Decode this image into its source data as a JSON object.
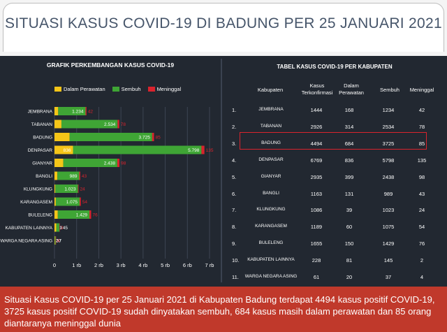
{
  "header": {
    "title": "SITUASI KASUS COVID-19 DI BADUNG PER 25 JANUARI 2021"
  },
  "chart": {
    "title": "GRAFIK PERKEMBANGAN KASUS COVID-19",
    "legend": [
      {
        "label": "Dalam Perawatan",
        "color": "#f5c518"
      },
      {
        "label": "Sembuh",
        "color": "#3fa535"
      },
      {
        "label": "Meninggal",
        "color": "#d9232d"
      }
    ]
  },
  "chart_data": {
    "type": "bar",
    "orientation": "horizontal",
    "stacked": true,
    "title": "GRAFIK PERKEMBANGAN KASUS COVID-19",
    "categories": [
      "JEMBRANA",
      "TABANAN",
      "BADUNG",
      "DENPASAR",
      "GIANYAR",
      "BANGLI",
      "KLUNGKUNG",
      "KARANGASEM",
      "BULELENG",
      "KABUPATEN LAINNYA",
      "WARGA NEGARA ASING"
    ],
    "series": [
      {
        "name": "Dalam Perawatan",
        "color": "#f5c518",
        "values": [
          168,
          314,
          684,
          836,
          399,
          131,
          39,
          60,
          150,
          81,
          20
        ],
        "labels": [
          "168",
          "314",
          "684",
          "836",
          "399",
          "131",
          "39",
          "60",
          "150",
          "81",
          "20"
        ]
      },
      {
        "name": "Sembuh",
        "color": "#3fa535",
        "values": [
          1234,
          2534,
          3725,
          5798,
          2438,
          989,
          1023,
          1075,
          1429,
          145,
          37
        ],
        "labels": [
          "1.234",
          "2.534",
          "3.725",
          "5.798",
          "2.438",
          "989",
          "1.023",
          "1.075",
          "1.429",
          "145",
          "37"
        ]
      },
      {
        "name": "Meninggal",
        "color": "#d9232d",
        "values": [
          42,
          78,
          85,
          135,
          98,
          43,
          24,
          54,
          76,
          2,
          4
        ],
        "labels": [
          "42",
          "78",
          "85",
          "135",
          "98",
          "43",
          "24",
          "54",
          "76",
          "2",
          "4"
        ]
      }
    ],
    "xlim": [
      0,
      7000
    ],
    "xticks": [
      "0",
      "1 rb",
      "2 rb",
      "3 rb",
      "4 rb",
      "5 rb",
      "6 rb",
      "7 rb"
    ],
    "grid": true,
    "legend_position": "top"
  },
  "table": {
    "title": "TABEL KASUS COVID-19 PER KABUPATEN",
    "headers": [
      "Kabupaten",
      "Kasus Terkonfirmasi",
      "Dalam Perawatan",
      "Sembuh",
      "Meninggal"
    ],
    "rows": [
      {
        "no": "1.",
        "kabupaten": "JEMBRANA",
        "kasus": "1444",
        "perawatan": "168",
        "sembuh": "1234",
        "meninggal": "42"
      },
      {
        "no": "2.",
        "kabupaten": "TABANAN",
        "kasus": "2926",
        "perawatan": "314",
        "sembuh": "2534",
        "meninggal": "78"
      },
      {
        "no": "3.",
        "kabupaten": "BADUNG",
        "kasus": "4494",
        "perawatan": "684",
        "sembuh": "3725",
        "meninggal": "85"
      },
      {
        "no": "4.",
        "kabupaten": "DENPASAR",
        "kasus": "6769",
        "perawatan": "836",
        "sembuh": "5798",
        "meninggal": "135"
      },
      {
        "no": "5.",
        "kabupaten": "GIANYAR",
        "kasus": "2935",
        "perawatan": "399",
        "sembuh": "2438",
        "meninggal": "98"
      },
      {
        "no": "6.",
        "kabupaten": "BANGLI",
        "kasus": "1163",
        "perawatan": "131",
        "sembuh": "989",
        "meninggal": "43"
      },
      {
        "no": "7.",
        "kabupaten": "KLUNGKUNG",
        "kasus": "1086",
        "perawatan": "39",
        "sembuh": "1023",
        "meninggal": "24"
      },
      {
        "no": "8.",
        "kabupaten": "KARANGASEM",
        "kasus": "1189",
        "perawatan": "60",
        "sembuh": "1075",
        "meninggal": "54"
      },
      {
        "no": "9.",
        "kabupaten": "BULELENG",
        "kasus": "1655",
        "perawatan": "150",
        "sembuh": "1429",
        "meninggal": "76"
      },
      {
        "no": "10.",
        "kabupaten": "KABUPATEN LAINNYA",
        "kasus": "228",
        "perawatan": "81",
        "sembuh": "145",
        "meninggal": "2"
      },
      {
        "no": "11.",
        "kabupaten": "WARGA NEGARA ASING",
        "kasus": "61",
        "perawatan": "20",
        "sembuh": "37",
        "meninggal": "4"
      }
    ],
    "highlight_row": "BADUNG",
    "highlight_color": "#d9232d"
  },
  "caption": {
    "text": "Situasi Kasus COVID-19 per 25 Januari 2021 di Kabupaten Badung terdapat 4494 kasus positif COVID-19, 3725 kasus positif COVID-19 sudah dinyatakan sembuh, 684 kasus masih dalam perawatan dan 85 orang diantaranya meninggal dunia"
  },
  "colors": {
    "panel_bg": "#222831",
    "caption_bg": "#c0392b",
    "title_text": "#46556a"
  }
}
